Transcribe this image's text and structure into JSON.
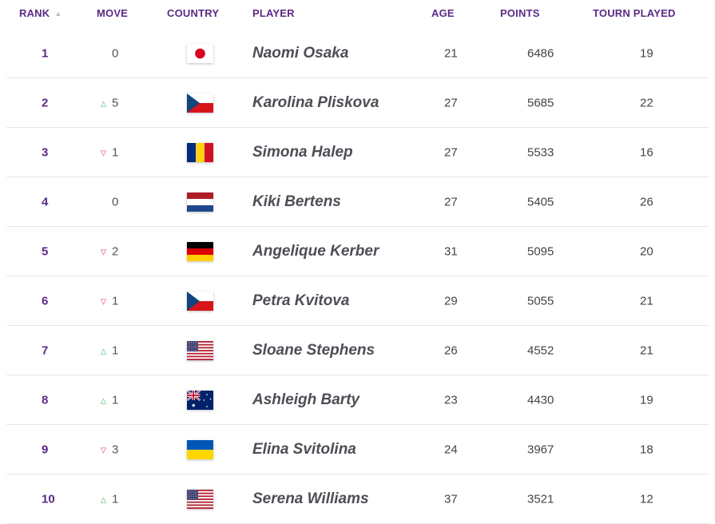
{
  "headers": {
    "rank": "RANK",
    "move": "MOVE",
    "country": "COUNTRY",
    "player": "PLAYER",
    "age": "AGE",
    "points": "POINTS",
    "tourn": "TOURN PLAYED"
  },
  "rows": [
    {
      "rank": "1",
      "direction": "none",
      "move": "0",
      "flag": "japan-flag-icon",
      "player": "Naomi Osaka",
      "age": "21",
      "points": "6486",
      "tourn": "19"
    },
    {
      "rank": "2",
      "direction": "up",
      "move": "5",
      "flag": "czech-flag-icon",
      "player": "Karolina Pliskova",
      "age": "27",
      "points": "5685",
      "tourn": "22"
    },
    {
      "rank": "3",
      "direction": "down",
      "move": "1",
      "flag": "romania-flag-icon",
      "player": "Simona Halep",
      "age": "27",
      "points": "5533",
      "tourn": "16"
    },
    {
      "rank": "4",
      "direction": "none",
      "move": "0",
      "flag": "netherlands-flag-icon",
      "player": "Kiki Bertens",
      "age": "27",
      "points": "5405",
      "tourn": "26"
    },
    {
      "rank": "5",
      "direction": "down",
      "move": "2",
      "flag": "germany-flag-icon",
      "player": "Angelique Kerber",
      "age": "31",
      "points": "5095",
      "tourn": "20"
    },
    {
      "rank": "6",
      "direction": "down",
      "move": "1",
      "flag": "czech-flag-icon",
      "player": "Petra Kvitova",
      "age": "29",
      "points": "5055",
      "tourn": "21"
    },
    {
      "rank": "7",
      "direction": "up",
      "move": "1",
      "flag": "usa-flag-icon",
      "player": "Sloane Stephens",
      "age": "26",
      "points": "4552",
      "tourn": "21"
    },
    {
      "rank": "8",
      "direction": "up",
      "move": "1",
      "flag": "australia-flag-icon",
      "player": "Ashleigh Barty",
      "age": "23",
      "points": "4430",
      "tourn": "19"
    },
    {
      "rank": "9",
      "direction": "down",
      "move": "3",
      "flag": "ukraine-flag-icon",
      "player": "Elina Svitolina",
      "age": "24",
      "points": "3967",
      "tourn": "18"
    },
    {
      "rank": "10",
      "direction": "up",
      "move": "1",
      "flag": "usa-flag-icon",
      "player": "Serena Williams",
      "age": "37",
      "points": "3521",
      "tourn": "12"
    }
  ],
  "colors": {
    "header": "#5b2a86",
    "up": "#2fa84f",
    "down": "#d2263a"
  }
}
